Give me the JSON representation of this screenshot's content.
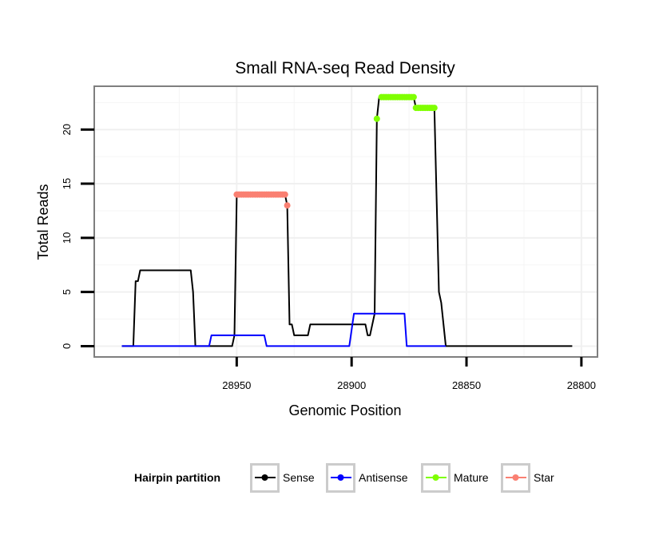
{
  "chart_data": {
    "type": "line",
    "title": "Small RNA-seq Read Density",
    "xlabel": "Genomic Position",
    "ylabel": "Total Reads",
    "xlim": [
      29012,
      28793
    ],
    "ylim": [
      -1,
      24
    ],
    "x_reversed": true,
    "x_ticks": [
      28950,
      28900,
      28850,
      28800
    ],
    "y_ticks": [
      0,
      5,
      10,
      15,
      20
    ],
    "grid": true,
    "legend": {
      "title": "Hairpin partition",
      "position": "bottom",
      "entries": [
        {
          "name": "Sense",
          "color": "#000000"
        },
        {
          "name": "Antisense",
          "color": "#0000FF"
        },
        {
          "name": "Mature",
          "color": "#7FFF00"
        },
        {
          "name": "Star",
          "color": "#FA8072"
        }
      ]
    },
    "series": [
      {
        "name": "Sense",
        "kind": "line",
        "color": "#000000",
        "points": [
          [
            29000,
            0
          ],
          [
            28995,
            0
          ],
          [
            28994,
            6
          ],
          [
            28993,
            6
          ],
          [
            28992,
            7
          ],
          [
            28970,
            7
          ],
          [
            28969,
            5
          ],
          [
            28968,
            0
          ],
          [
            28952,
            0
          ],
          [
            28951,
            1
          ],
          [
            28950,
            14
          ],
          [
            28929,
            14
          ],
          [
            28928,
            13
          ],
          [
            28927,
            2
          ],
          [
            28926,
            2
          ],
          [
            28925,
            1
          ],
          [
            28919,
            1
          ],
          [
            28918,
            2
          ],
          [
            28894,
            2
          ],
          [
            28893,
            1
          ],
          [
            28892,
            1
          ],
          [
            28890,
            3
          ],
          [
            28889,
            21
          ],
          [
            28888,
            23
          ],
          [
            28873,
            23
          ],
          [
            28872,
            22
          ],
          [
            28864,
            22
          ],
          [
            28862,
            5
          ],
          [
            28861,
            4
          ],
          [
            28859,
            0
          ],
          [
            28804,
            0
          ]
        ]
      },
      {
        "name": "Antisense",
        "kind": "line",
        "color": "#0000FF",
        "points": [
          [
            29000,
            0
          ],
          [
            28962,
            0
          ],
          [
            28961,
            1
          ],
          [
            28938,
            1
          ],
          [
            28937,
            0
          ],
          [
            28901,
            0
          ],
          [
            28899,
            3
          ],
          [
            28877,
            3
          ],
          [
            28876,
            0
          ],
          [
            28859,
            0
          ]
        ]
      },
      {
        "name": "Mature",
        "kind": "points",
        "color": "#7FFF00",
        "points": [
          [
            28889,
            21
          ],
          [
            28887,
            23
          ],
          [
            28886,
            23
          ],
          [
            28885,
            23
          ],
          [
            28884,
            23
          ],
          [
            28883,
            23
          ],
          [
            28882,
            23
          ],
          [
            28881,
            23
          ],
          [
            28880,
            23
          ],
          [
            28879,
            23
          ],
          [
            28878,
            23
          ],
          [
            28877,
            23
          ],
          [
            28876,
            23
          ],
          [
            28875,
            23
          ],
          [
            28874,
            23
          ],
          [
            28873,
            23
          ],
          [
            28872,
            22
          ],
          [
            28871,
            22
          ],
          [
            28870,
            22
          ],
          [
            28869,
            22
          ],
          [
            28868,
            22
          ],
          [
            28867,
            22
          ],
          [
            28866,
            22
          ],
          [
            28865,
            22
          ],
          [
            28864,
            22
          ]
        ]
      },
      {
        "name": "Star",
        "kind": "points",
        "color": "#FA8072",
        "points": [
          [
            28950,
            14
          ],
          [
            28949,
            14
          ],
          [
            28948,
            14
          ],
          [
            28947,
            14
          ],
          [
            28946,
            14
          ],
          [
            28945,
            14
          ],
          [
            28944,
            14
          ],
          [
            28943,
            14
          ],
          [
            28942,
            14
          ],
          [
            28941,
            14
          ],
          [
            28940,
            14
          ],
          [
            28939,
            14
          ],
          [
            28938,
            14
          ],
          [
            28937,
            14
          ],
          [
            28936,
            14
          ],
          [
            28935,
            14
          ],
          [
            28934,
            14
          ],
          [
            28933,
            14
          ],
          [
            28932,
            14
          ],
          [
            28931,
            14
          ],
          [
            28930,
            14
          ],
          [
            28929,
            14
          ],
          [
            28928,
            13
          ]
        ]
      }
    ]
  }
}
